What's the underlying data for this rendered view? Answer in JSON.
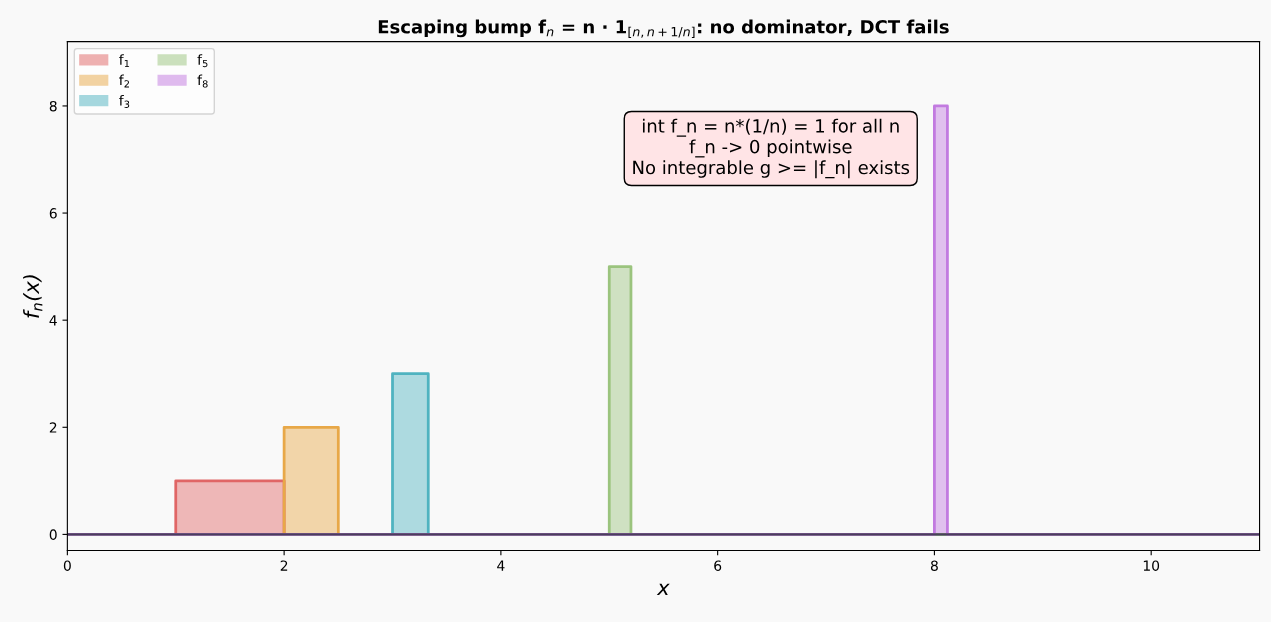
{
  "chart_data": {
    "type": "area",
    "title": "Escaping bump f$_{n}$ = n · 1$_{[n,n+1/n]}$: no dominator, DCT fails",
    "xlabel": "x",
    "ylabel": "f$_{n}$(x)",
    "series": [
      {
        "name": "f$_{1}$",
        "color": "#e06666",
        "x": [
          0,
          1,
          1,
          2,
          2,
          11
        ],
        "values": [
          0,
          0,
          1,
          1,
          0,
          0
        ]
      },
      {
        "name": "f$_{2}$",
        "color": "#e8a848",
        "x": [
          0,
          2,
          2,
          2.5,
          2.5,
          11
        ],
        "values": [
          0,
          0,
          2,
          2,
          0,
          0
        ]
      },
      {
        "name": "f$_{3}$",
        "color": "#4fb3c0",
        "x": [
          0,
          3,
          3,
          3.33,
          3.33,
          11
        ],
        "values": [
          0,
          0,
          3,
          3,
          0,
          0
        ]
      },
      {
        "name": "f$_{5}$",
        "color": "#9bc47e",
        "x": [
          0,
          5,
          5,
          5.2,
          5.2,
          11
        ],
        "values": [
          0,
          0,
          5,
          5,
          0,
          0
        ]
      },
      {
        "name": "f$_{8}$",
        "color": "#c27ae0",
        "x": [
          0,
          8,
          8,
          8.12,
          8.12,
          11
        ],
        "values": [
          0,
          0,
          8,
          8,
          0,
          0
        ]
      }
    ],
    "xlim": [
      0,
      11
    ],
    "ylim": [
      -0.3,
      9.2
    ],
    "xticks": [
      0,
      2,
      4,
      6,
      8,
      10
    ],
    "yticks": [
      0,
      2,
      4,
      6,
      8
    ],
    "ref_lines": [
      {
        "axis": "y",
        "value": 0,
        "color": "#4a3f5c"
      }
    ],
    "annotations": [
      "int f_n = n*(1/n) = 1 for all n\nf_n -> 0 pointwise\nNo integrable g >= |f_n| exists"
    ],
    "legend": "top left",
    "grid": false
  }
}
